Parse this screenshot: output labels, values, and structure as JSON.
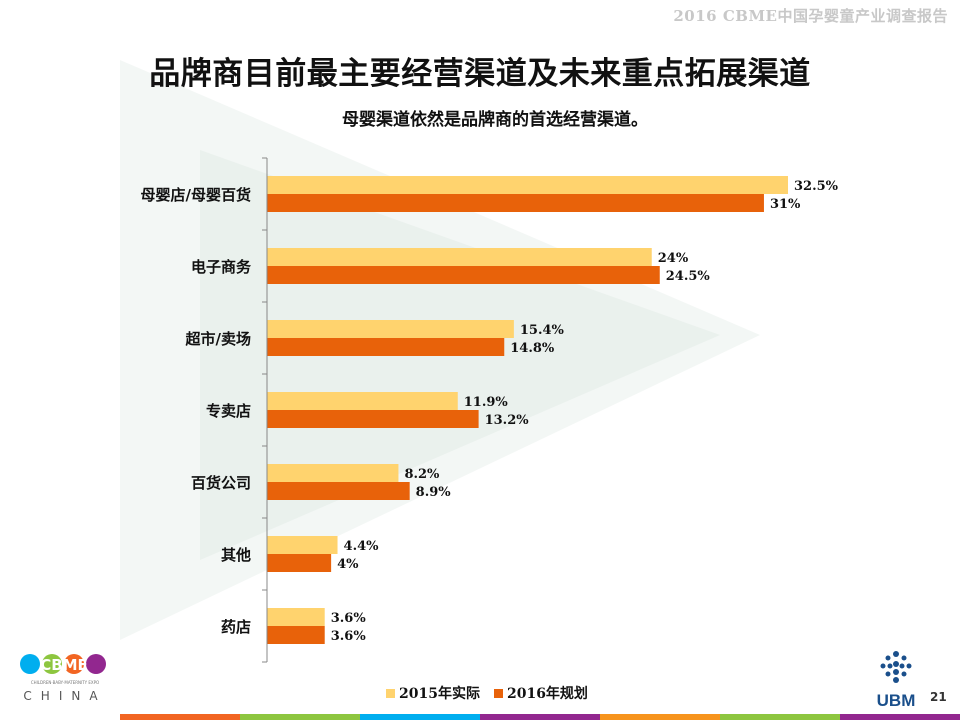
{
  "header": {
    "report_title": "2016 CBME中国孕婴童产业调查报告"
  },
  "slide": {
    "title": "品牌商目前最主要经营渠道及未来重点拓展渠道",
    "subtitle": "母婴渠道依然是品牌商的首选经营渠道。",
    "page_number": "21"
  },
  "chart_data": {
    "type": "bar",
    "orientation": "horizontal",
    "categories": [
      "母婴店/母婴百货",
      "电子商务",
      "超市/卖场",
      "专卖店",
      "百货公司",
      "其他",
      "药店"
    ],
    "series": [
      {
        "name": "2015年实际",
        "color": "#ffd36e",
        "values": [
          32.5,
          24,
          15.4,
          11.9,
          8.2,
          4.4,
          3.6
        ],
        "labels": [
          "32.5%",
          "24%",
          "15.4%",
          "11.9%",
          "8.2%",
          "4.4%",
          "3.6%"
        ]
      },
      {
        "name": "2016年规划",
        "color": "#e8620a",
        "values": [
          31,
          24.5,
          14.8,
          13.2,
          8.9,
          4,
          3.6
        ],
        "labels": [
          "31%",
          "24.5%",
          "14.8%",
          "13.2%",
          "8.9%",
          "4%",
          "3.6%"
        ]
      }
    ],
    "xlim": [
      0,
      32.5
    ],
    "grid": false,
    "legend": "bottom"
  },
  "legend": {
    "items": [
      "2015年实际",
      "2016年规划"
    ]
  },
  "logos": {
    "cbme": {
      "text": "CBME",
      "sub": "CHINA",
      "tagline": "CHILDREN·BABY·MATERNITY EXPO"
    },
    "ubm": {
      "text": "UBM"
    }
  },
  "footer_colors": [
    "#f26522",
    "#8dc63f",
    "#00aeef",
    "#92278f",
    "#f7941d",
    "#8dc63f",
    "#92278f"
  ]
}
